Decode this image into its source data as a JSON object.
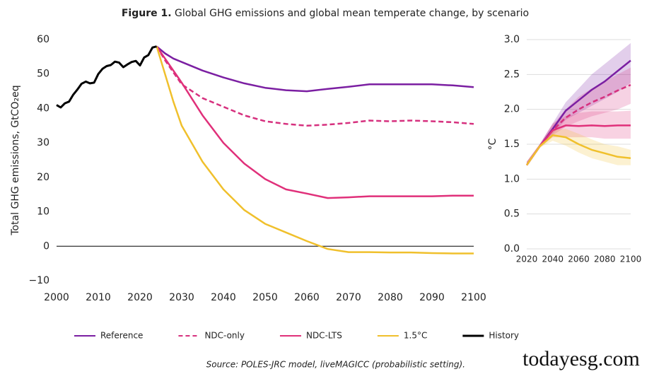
{
  "figure": {
    "label": "Figure 1.",
    "title": "Global GHG emissions and global mean temperate change, by scenario"
  },
  "source": "Source: POLES-JRC model, liveMAGICC (probabilistic setting).",
  "watermark": "todayesg.com",
  "chart_data": [
    {
      "type": "line",
      "y_label": "Total GHG emissions, GtCO₂eq",
      "xlim": [
        2000,
        2100
      ],
      "xticks": [
        2000,
        2010,
        2020,
        2030,
        2040,
        2050,
        2060,
        2070,
        2080,
        2090,
        2100
      ],
      "ylim": [
        -10,
        60
      ],
      "yticks": [
        {
          "value": -10,
          "label": "−10"
        },
        0,
        10,
        20,
        30,
        40,
        50,
        60
      ],
      "grid": false,
      "zero_line": true,
      "legend": "bottom",
      "x": [
        2024,
        2026,
        2028,
        2030,
        2035,
        2040,
        2045,
        2050,
        2055,
        2060,
        2065,
        2070,
        2075,
        2080,
        2085,
        2090,
        2095,
        2100
      ],
      "series": [
        {
          "name": "Reference",
          "color": "#7b1fa2",
          "dashed": false,
          "values": [
            58,
            56,
            54.5,
            53.5,
            51,
            49,
            47.3,
            46,
            45.3,
            45,
            45.7,
            46.3,
            47,
            47,
            47,
            47,
            46.7,
            46.2
          ]
        },
        {
          "name": "NDC-only",
          "color": "#d6307e",
          "dashed": true,
          "values": [
            58,
            54,
            50.5,
            47,
            43,
            40.5,
            38,
            36.3,
            35.5,
            35,
            35.3,
            35.8,
            36.5,
            36.3,
            36.5,
            36.3,
            36,
            35.5
          ]
        },
        {
          "name": "NDC-LTS",
          "color": "#e0307a",
          "dashed": false,
          "values": [
            58,
            54.5,
            51,
            47.5,
            38,
            30,
            24,
            19.5,
            16.5,
            15.3,
            14,
            14.2,
            14.5,
            14.5,
            14.5,
            14.5,
            14.7,
            14.7
          ]
        },
        {
          "name": "1.5°C",
          "color": "#f0c02c",
          "dashed": false,
          "values": [
            58,
            50,
            42,
            35,
            24.5,
            16.5,
            10.5,
            6.5,
            4,
            1.5,
            -0.8,
            -1.7,
            -1.7,
            -1.8,
            -1.8,
            -2,
            -2.1,
            -2.1
          ]
        },
        {
          "name": "History",
          "color": "#000000",
          "dashed": false,
          "x": [
            2000,
            2001,
            2002,
            2003,
            2004,
            2005,
            2006,
            2007,
            2008,
            2009,
            2010,
            2011,
            2012,
            2013,
            2014,
            2015,
            2016,
            2017,
            2018,
            2019,
            2020,
            2021,
            2022,
            2023,
            2024
          ],
          "values": [
            41,
            40.3,
            41.5,
            42,
            44,
            45.5,
            47.2,
            47.8,
            47.3,
            47.5,
            50,
            51.5,
            52.3,
            52.6,
            53.6,
            53.3,
            52,
            52.8,
            53.5,
            53.8,
            52.5,
            54.8,
            55.5,
            57.7,
            58
          ]
        }
      ]
    },
    {
      "type": "line",
      "y_label": "°C",
      "xlim": [
        2020,
        2100
      ],
      "xticks": [
        2020,
        2040,
        2060,
        2080,
        2100
      ],
      "ylim": [
        0,
        3
      ],
      "yticks": [
        {
          "value": 0,
          "label": "0.0"
        },
        0.5,
        {
          "value": 1,
          "label": "1.0"
        },
        1.5,
        {
          "value": 2,
          "label": "2.0"
        },
        2.5,
        {
          "value": 3,
          "label": "3.0"
        }
      ],
      "grid": true,
      "zero_line": false,
      "x": [
        2020,
        2030,
        2040,
        2050,
        2060,
        2070,
        2080,
        2090,
        2100
      ],
      "series": [
        {
          "name": "Reference",
          "color": "#7b1fa2",
          "dashed": false,
          "values": [
            1.2,
            1.47,
            1.72,
            1.98,
            2.13,
            2.28,
            2.4,
            2.55,
            2.7
          ],
          "lower": [
            1.2,
            1.45,
            1.65,
            1.85,
            1.95,
            2.05,
            2.15,
            2.25,
            2.38
          ],
          "upper": [
            1.25,
            1.5,
            1.8,
            2.1,
            2.3,
            2.5,
            2.65,
            2.8,
            2.95
          ]
        },
        {
          "name": "NDC-only",
          "color": "#d6307e",
          "dashed": true,
          "values": [
            1.2,
            1.47,
            1.7,
            1.88,
            2,
            2.1,
            2.18,
            2.27,
            2.35
          ],
          "lower": [
            1.2,
            1.45,
            1.63,
            1.75,
            1.83,
            1.9,
            1.95,
            2,
            2.08
          ],
          "upper": [
            1.25,
            1.5,
            1.78,
            2,
            2.18,
            2.3,
            2.4,
            2.5,
            2.6
          ]
        },
        {
          "name": "NDC-LTS",
          "color": "#e0307a",
          "dashed": false,
          "values": [
            1.2,
            1.47,
            1.7,
            1.77,
            1.76,
            1.77,
            1.76,
            1.77,
            1.77
          ],
          "lower": [
            1.2,
            1.45,
            1.6,
            1.6,
            1.6,
            1.6,
            1.58,
            1.58,
            1.58
          ],
          "upper": [
            1.25,
            1.5,
            1.8,
            1.9,
            1.95,
            1.97,
            1.97,
            1.97,
            1.98
          ]
        },
        {
          "name": "1.5°C",
          "color": "#f0c02c",
          "dashed": false,
          "values": [
            1.2,
            1.47,
            1.63,
            1.6,
            1.5,
            1.42,
            1.37,
            1.32,
            1.3
          ],
          "lower": [
            1.2,
            1.45,
            1.55,
            1.48,
            1.38,
            1.3,
            1.25,
            1.2,
            1.2
          ],
          "upper": [
            1.25,
            1.5,
            1.7,
            1.72,
            1.65,
            1.57,
            1.5,
            1.47,
            1.42
          ]
        }
      ]
    }
  ]
}
